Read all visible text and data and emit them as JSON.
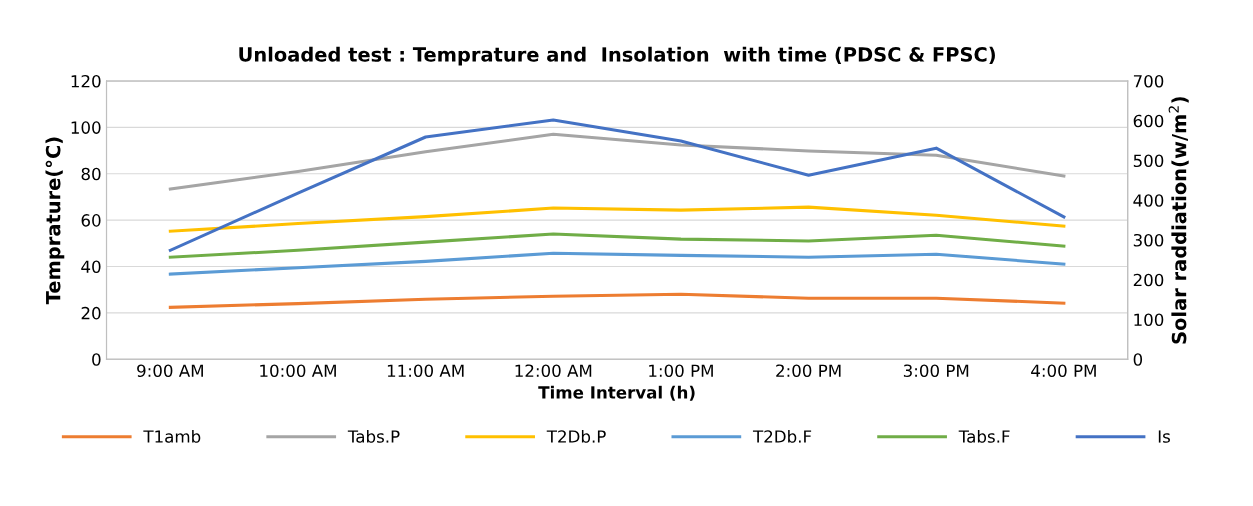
{
  "chart_data": {
    "type": "line",
    "title": "Unloaded test : Temprature and  Insolation  with time (PDSC & FPSC)",
    "xlabel": "Time Interval (h)",
    "ylabel": "Temprature(°C)",
    "y2label": "Solar raddiation(w/m$^{2}$)",
    "categories": [
      "9:00 AM",
      "10:00 AM",
      "11:00 AM",
      "12:00 AM",
      "1:00 PM",
      "2:00 PM",
      "3:00 PM",
      "4:00 PM"
    ],
    "series": [
      {
        "name": "T1amb",
        "color": "#ed7d31",
        "values": [
          22.4,
          24,
          25.9,
          27.2,
          28,
          26.3,
          26.3,
          24.2
        ]
      },
      {
        "name": "Tabs.P",
        "color": "#a5a5a5",
        "values": [
          73.4,
          81,
          89.5,
          97,
          92.4,
          89.8,
          88,
          79
        ]
      },
      {
        "name": "T2Db.P",
        "color": "#ffc000",
        "values": [
          55.2,
          58.5,
          61.5,
          65.2,
          64.3,
          65.6,
          62.1,
          57.4
        ]
      },
      {
        "name": "T2Db.F",
        "color": "#5b9bd5",
        "values": [
          36.7,
          39.5,
          42.2,
          45.7,
          44.8,
          44,
          45.3,
          41
        ]
      },
      {
        "name": "Tabs.F",
        "color": "#70ad47",
        "values": [
          44,
          47,
          50.5,
          54,
          51.8,
          51,
          53.5,
          48.8
        ]
      },
      {
        "name": "Is",
        "color": "#4472c4",
        "axis": "y2",
        "values": [
          274,
          418,
          559,
          602,
          549,
          463,
          531,
          358
        ]
      }
    ],
    "ylim": [
      0,
      120
    ],
    "yticks": [
      0,
      20,
      40,
      60,
      80,
      100,
      120
    ],
    "y2lim": [
      0,
      700
    ],
    "y2ticks": [
      0,
      100,
      200,
      300,
      400,
      500,
      600,
      700
    ],
    "grid": "y",
    "legend": "bottom",
    "marker": "none",
    "line_style": "solid"
  }
}
